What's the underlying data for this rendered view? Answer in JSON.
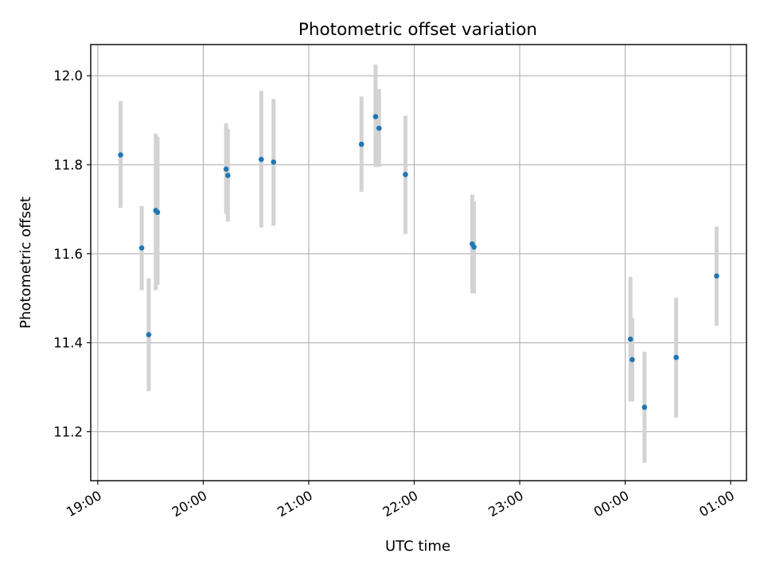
{
  "chart_data": {
    "type": "scatter",
    "title": "Photometric offset variation",
    "xlabel": "UTC time",
    "ylabel": "Photometric offset",
    "x_ticks": [
      "19:00",
      "20:00",
      "21:00",
      "22:00",
      "23:00",
      "00:00",
      "01:00"
    ],
    "y_ticks": [
      "11.2",
      "11.4",
      "11.6",
      "11.8",
      "12.0"
    ],
    "xlim": [
      "18:56",
      "01:09"
    ],
    "ylim": [
      11.09,
      12.07
    ],
    "grid": true,
    "marker_color": "#1f77b4",
    "errorbar_color": "#d3d3d3",
    "points": [
      {
        "x": "19:13",
        "y": 11.822,
        "err_low": 11.703,
        "err_high": 11.943
      },
      {
        "x": "19:25",
        "y": 11.613,
        "err_low": 11.518,
        "err_high": 11.707
      },
      {
        "x": "19:29",
        "y": 11.418,
        "err_low": 11.291,
        "err_high": 11.545
      },
      {
        "x": "19:33",
        "y": 11.697,
        "err_low": 11.518,
        "err_high": 11.87
      },
      {
        "x": "19:34",
        "y": 11.693,
        "err_low": 11.53,
        "err_high": 11.862
      },
      {
        "x": "20:13",
        "y": 11.79,
        "err_low": 11.69,
        "err_high": 11.893
      },
      {
        "x": "20:14",
        "y": 11.776,
        "err_low": 11.672,
        "err_high": 11.88
      },
      {
        "x": "20:33",
        "y": 11.812,
        "err_low": 11.659,
        "err_high": 11.966
      },
      {
        "x": "20:40",
        "y": 11.806,
        "err_low": 11.663,
        "err_high": 11.948
      },
      {
        "x": "21:30",
        "y": 11.846,
        "err_low": 11.739,
        "err_high": 11.953
      },
      {
        "x": "21:38",
        "y": 11.908,
        "err_low": 11.795,
        "err_high": 12.025
      },
      {
        "x": "21:40",
        "y": 11.882,
        "err_low": 11.795,
        "err_high": 11.97
      },
      {
        "x": "21:55",
        "y": 11.778,
        "err_low": 11.644,
        "err_high": 11.91
      },
      {
        "x": "22:33",
        "y": 11.622,
        "err_low": 11.511,
        "err_high": 11.733
      },
      {
        "x": "22:34",
        "y": 11.615,
        "err_low": 11.511,
        "err_high": 11.718
      },
      {
        "x": "00:03",
        "y": 11.408,
        "err_low": 11.268,
        "err_high": 11.548
      },
      {
        "x": "00:04",
        "y": 11.362,
        "err_low": 11.268,
        "err_high": 11.456
      },
      {
        "x": "00:11",
        "y": 11.255,
        "err_low": 11.13,
        "err_high": 11.38
      },
      {
        "x": "00:29",
        "y": 11.367,
        "err_low": 11.232,
        "err_high": 11.501
      },
      {
        "x": "00:52",
        "y": 11.55,
        "err_low": 11.438,
        "err_high": 11.661
      }
    ]
  }
}
